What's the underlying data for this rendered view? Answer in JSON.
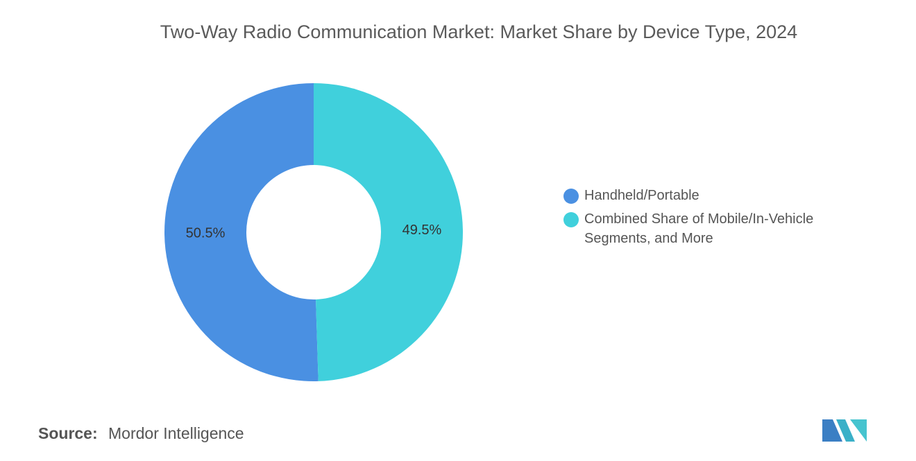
{
  "chart_data": {
    "type": "donut",
    "title": "Two-Way Radio Communication Market: Market Share by Device Type, 2024",
    "categories": [
      "Handheld/Portable",
      "Combined Share of Mobile/In-Vehicle Segments, and More"
    ],
    "values": [
      50.5,
      49.5
    ],
    "value_labels": [
      "50.5%",
      "49.5%"
    ],
    "colors": [
      "#4a90e2",
      "#40d0dc"
    ],
    "legend": "right"
  },
  "source": {
    "label": "Source:",
    "text": "Mordor Intelligence"
  }
}
